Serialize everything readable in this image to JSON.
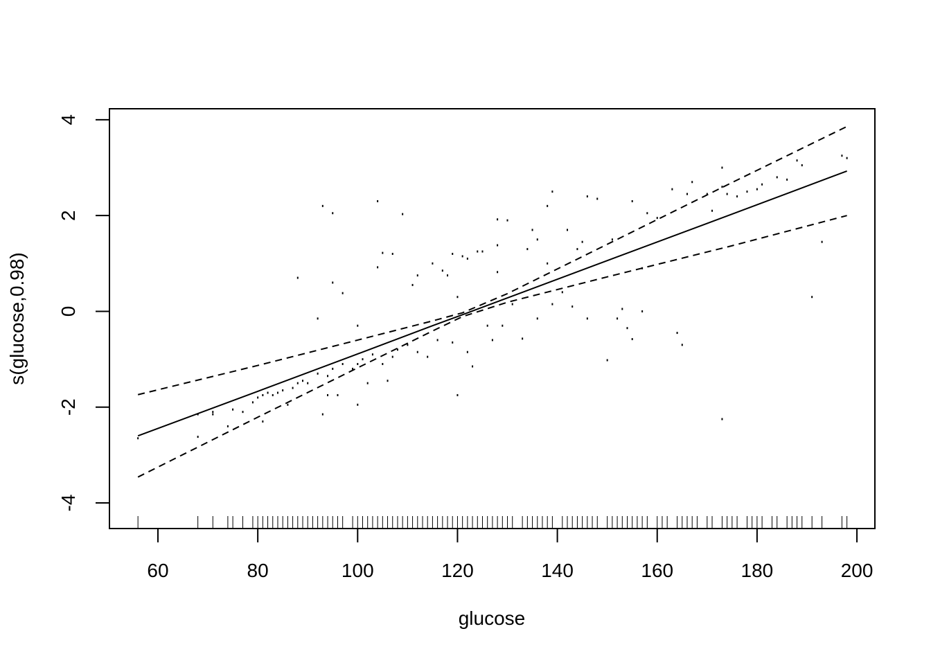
{
  "chart_data": {
    "type": "line",
    "x_label": "glucose",
    "y_label": "s(glucose,0.98)",
    "xlim": [
      50.29,
      203.6
    ],
    "ylim": [
      -4.535,
      4.23
    ],
    "xticks": [
      60,
      80,
      100,
      120,
      140,
      160,
      180,
      200
    ],
    "yticks": [
      -4,
      -2,
      0,
      2,
      4
    ],
    "x": [
      56,
      80,
      100,
      115,
      121,
      130,
      150,
      175,
      198
    ],
    "series": [
      {
        "color": "#000000",
        "dashed": false,
        "values": [
          -2.6,
          -1.67,
          -0.89,
          -0.3,
          -0.07,
          0.28,
          1.06,
          2.03,
          2.93
        ]
      },
      {
        "color": "#000000",
        "dashed": true,
        "values": [
          -1.74,
          -1.13,
          -0.6,
          -0.2,
          -0.03,
          0.37,
          1.4,
          2.69,
          3.86
        ]
      },
      {
        "color": "#000000",
        "dashed": true,
        "values": [
          -3.46,
          -2.21,
          -1.18,
          -0.41,
          -0.11,
          0.19,
          0.72,
          1.37,
          2.0
        ]
      }
    ],
    "points": {
      "color": "#000000",
      "x": [
        56,
        68,
        68,
        71,
        71,
        74,
        75,
        77,
        79,
        80,
        81,
        81,
        82,
        83,
        84,
        85,
        86,
        87,
        88,
        88,
        89,
        90,
        92,
        92,
        93,
        93,
        94,
        94,
        95,
        95,
        95,
        96,
        97,
        97,
        99,
        100,
        100,
        100,
        101,
        102,
        103,
        104,
        104,
        105,
        105,
        106,
        107,
        107,
        108,
        109,
        110,
        111,
        112,
        112,
        114,
        115,
        116,
        117,
        118,
        119,
        119,
        120,
        120,
        121,
        122,
        122,
        123,
        124,
        125,
        126,
        127,
        128,
        128,
        128,
        129,
        130,
        131,
        133,
        134,
        135,
        136,
        136,
        138,
        138,
        139,
        139,
        141,
        142,
        143,
        144,
        145,
        146,
        146,
        148,
        150,
        151,
        152,
        153,
        154,
        155,
        155,
        157,
        157,
        158,
        160,
        163,
        164,
        165,
        166,
        167,
        170,
        171,
        173,
        173,
        173,
        174,
        176,
        178,
        180,
        181,
        184,
        186,
        188,
        189,
        191,
        193,
        197,
        198
      ],
      "y": [
        -2.65,
        -2.15,
        -2.62,
        -2.1,
        -2.15,
        -2.4,
        -2.05,
        -2.1,
        -1.9,
        -1.8,
        -2.3,
        -1.75,
        -1.7,
        -1.75,
        -1.7,
        -1.65,
        -1.95,
        -1.6,
        0.7,
        -1.5,
        -1.45,
        -1.5,
        -0.15,
        -1.3,
        2.2,
        -2.15,
        -1.35,
        -1.75,
        2.05,
        0.6,
        -1.2,
        -1.75,
        0.38,
        -1.1,
        -1.2,
        -1.1,
        -0.3,
        -1.95,
        -1.0,
        -1.5,
        -0.9,
        2.3,
        0.92,
        1.22,
        -1.1,
        -1.45,
        1.2,
        -0.95,
        -0.8,
        2.03,
        -0.7,
        0.55,
        0.75,
        -0.85,
        -0.95,
        1.0,
        -0.6,
        0.85,
        0.75,
        1.2,
        -0.65,
        -1.75,
        0.3,
        1.15,
        1.1,
        -0.85,
        -1.15,
        1.25,
        1.25,
        -0.3,
        -0.6,
        1.92,
        0.82,
        1.38,
        -0.3,
        1.9,
        0.15,
        -0.57,
        1.3,
        1.7,
        1.5,
        -0.15,
        1.0,
        2.2,
        2.5,
        0.15,
        0.4,
        1.7,
        0.1,
        1.3,
        1.45,
        2.4,
        -0.15,
        2.35,
        -1.02,
        1.5,
        -0.15,
        0.05,
        -0.35,
        2.3,
        -0.58,
        0.9,
        0.0,
        2.05,
        1.95,
        2.55,
        -0.45,
        -0.7,
        2.45,
        2.7,
        2.45,
        2.1,
        3.0,
        2.6,
        -2.25,
        2.45,
        2.4,
        2.5,
        2.55,
        2.65,
        2.8,
        2.75,
        3.15,
        3.05,
        0.3,
        1.45,
        3.25,
        3.2
      ]
    },
    "rug": [
      56,
      68,
      71,
      74,
      75,
      77,
      79,
      80,
      81,
      82,
      83,
      84,
      85,
      86,
      87,
      88,
      89,
      90,
      91,
      92,
      93,
      94,
      95,
      96,
      97,
      99,
      100,
      101,
      102,
      103,
      104,
      105,
      106,
      107,
      108,
      109,
      110,
      111,
      112,
      113,
      114,
      115,
      116,
      117,
      118,
      119,
      120,
      121,
      122,
      123,
      124,
      125,
      126,
      127,
      128,
      129,
      130,
      131,
      133,
      134,
      135,
      136,
      137,
      138,
      139,
      141,
      142,
      143,
      144,
      145,
      146,
      147,
      148,
      150,
      151,
      152,
      153,
      154,
      155,
      156,
      157,
      158,
      160,
      161,
      162,
      164,
      165,
      166,
      167,
      168,
      170,
      171,
      173,
      174,
      175,
      176,
      178,
      179,
      180,
      181,
      183,
      184,
      186,
      187,
      188,
      189,
      191,
      193,
      197,
      198
    ]
  }
}
